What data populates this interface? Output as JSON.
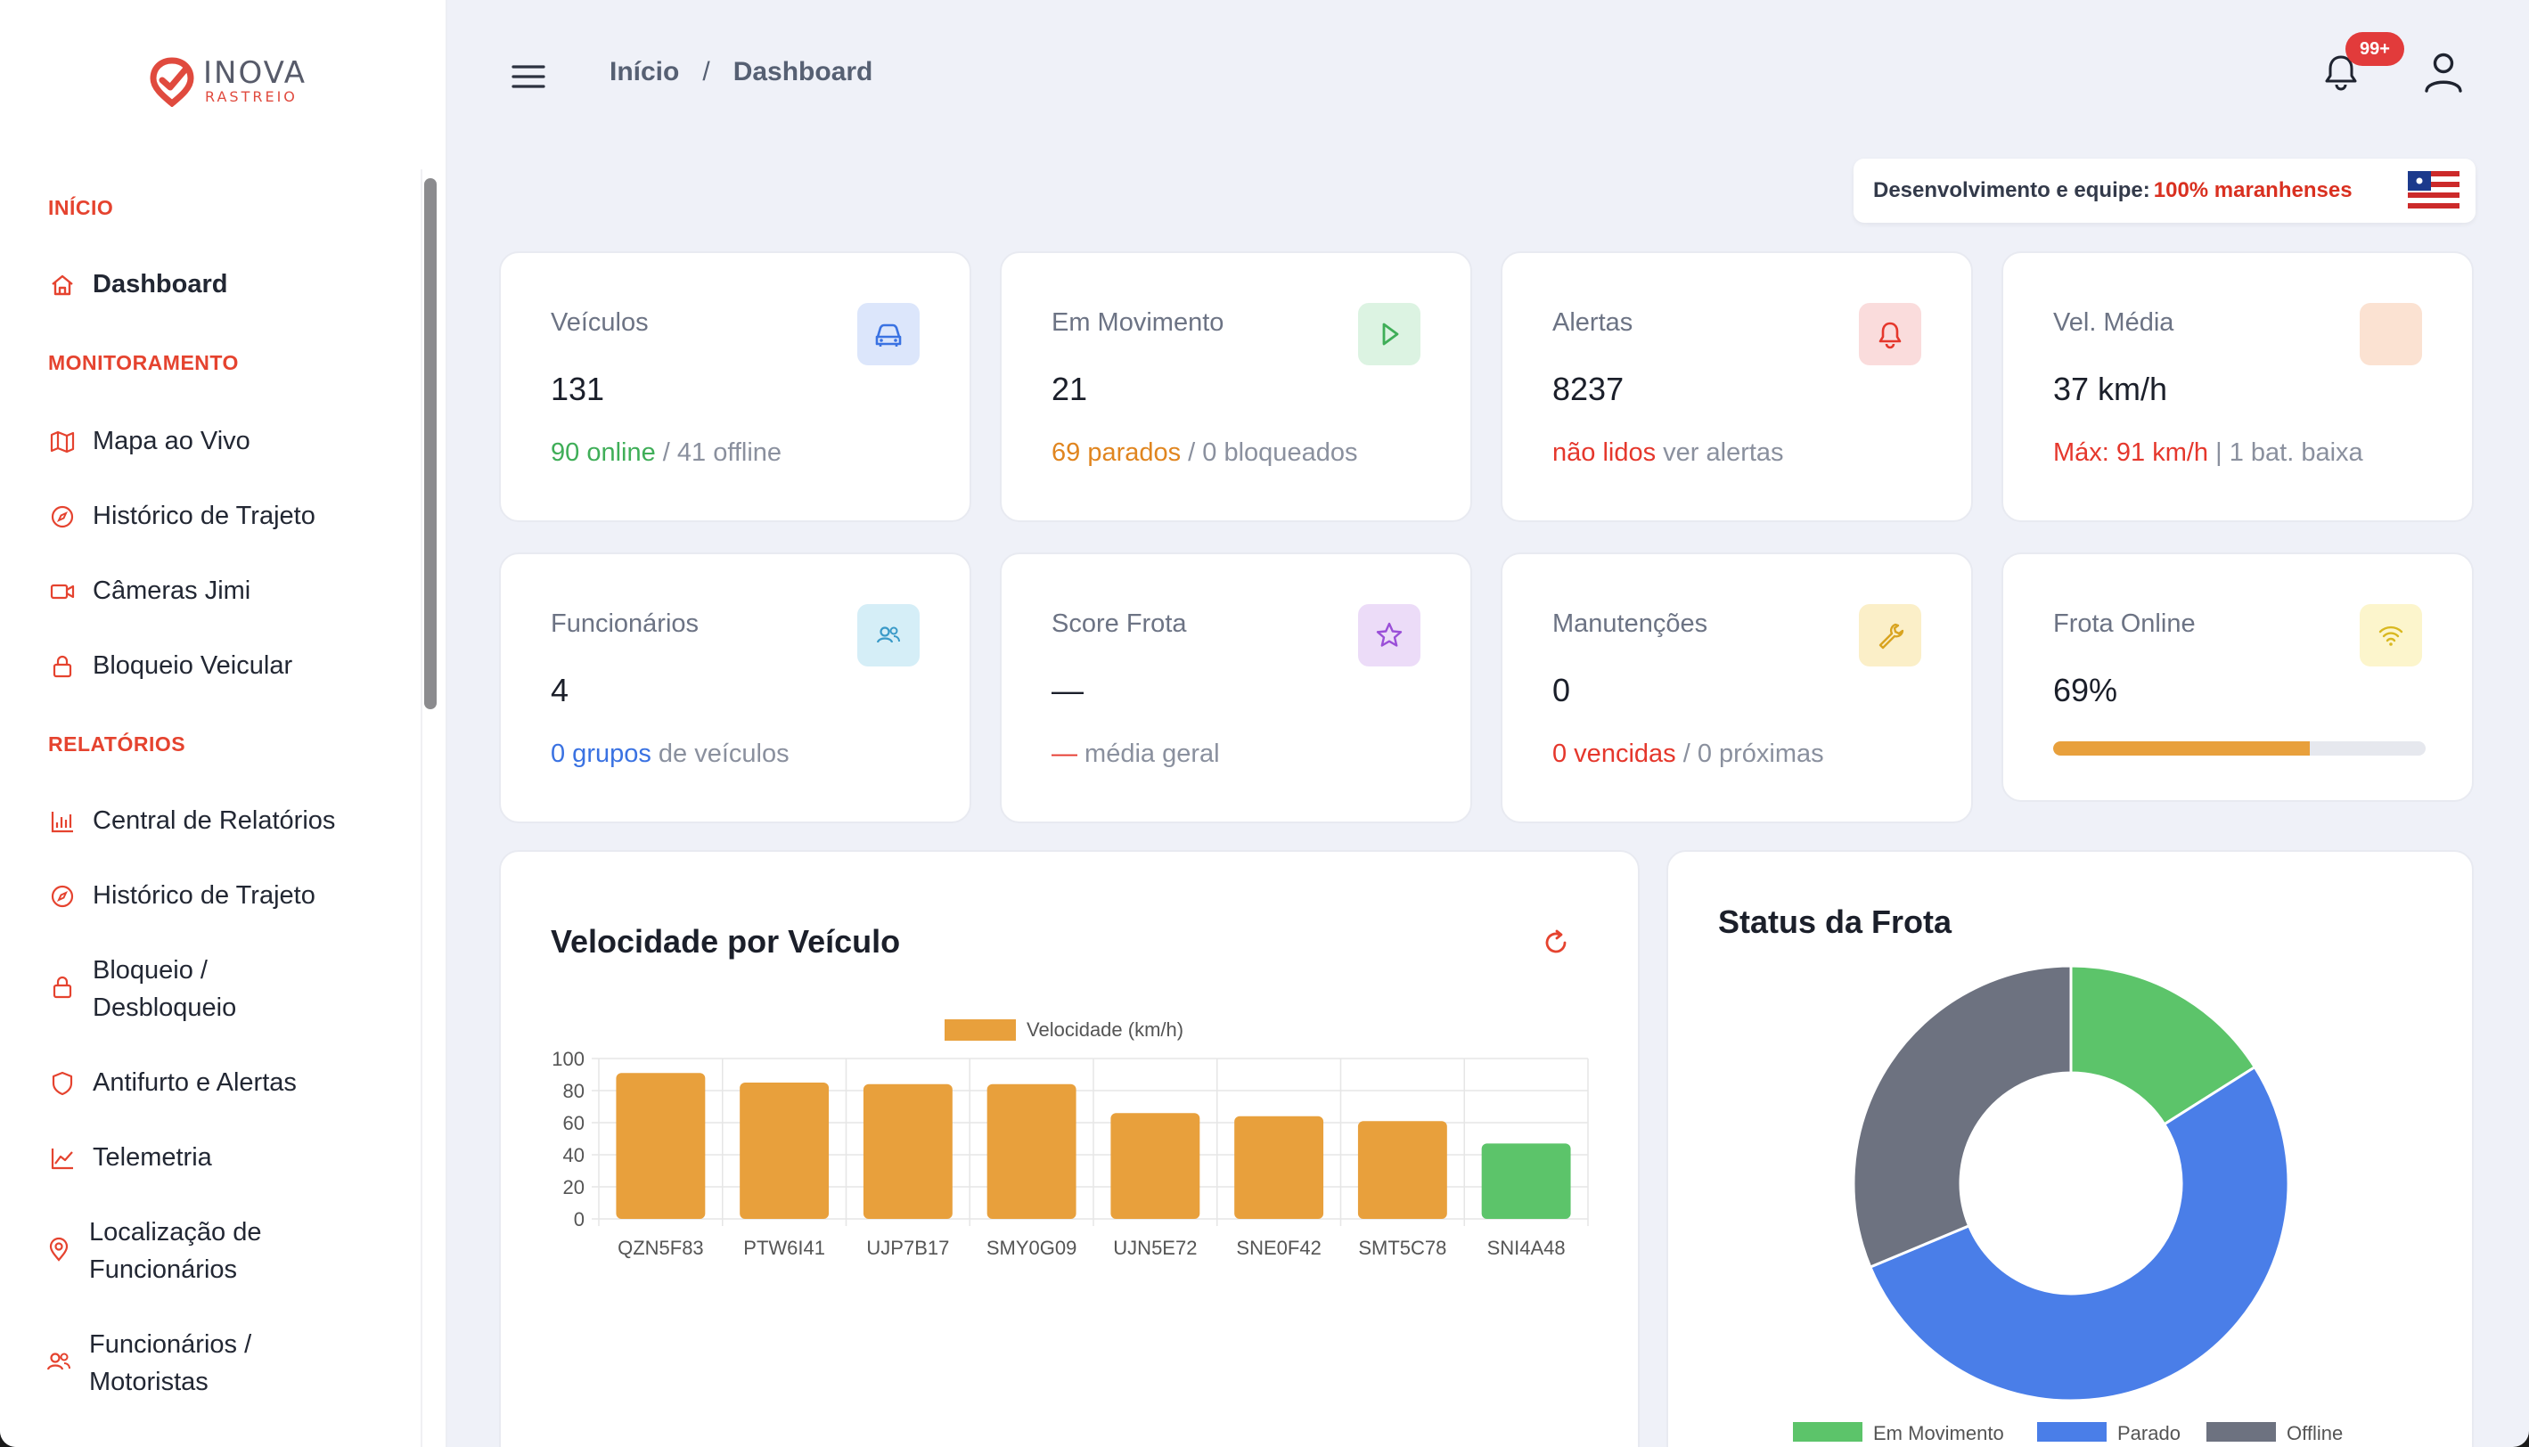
{
  "brand": {
    "name": "INOVA",
    "sub": "RASTREIO"
  },
  "sidebar": {
    "sections": [
      {
        "title": "INÍCIO"
      },
      {
        "title": "MONITORAMENTO"
      },
      {
        "title": "RELATÓRIOS"
      }
    ],
    "items": [
      {
        "label": "Dashboard",
        "icon": "home-icon"
      },
      {
        "label": "Mapa ao Vivo",
        "icon": "map-icon"
      },
      {
        "label": "Histórico de Trajeto",
        "icon": "compass-icon"
      },
      {
        "label": "Câmeras Jimi",
        "icon": "video-icon"
      },
      {
        "label": "Bloqueio Veicular",
        "icon": "lock-icon"
      },
      {
        "label": "Central de Relatórios",
        "icon": "bar-chart-icon"
      },
      {
        "label": "Histórico de Trajeto",
        "icon": "compass-icon"
      },
      {
        "label": "Bloqueio / Desbloqueio",
        "icon": "lock-icon"
      },
      {
        "label": "Antifurto e Alertas",
        "icon": "shield-icon"
      },
      {
        "label": "Telemetria",
        "icon": "trend-icon"
      },
      {
        "label": "Localização de Funcionários",
        "icon": "pin-icon"
      },
      {
        "label": "Funcionários / Motoristas",
        "icon": "users-icon"
      }
    ]
  },
  "header": {
    "breadcrumb": [
      "Início",
      "/",
      "Dashboard"
    ],
    "notification_badge": "99+",
    "team_label": "Desenvolvimento e equipe:",
    "team_highlight": "100% maranhenses"
  },
  "stats": [
    {
      "title": "Veículos",
      "value": "131",
      "sub_highlight": "90 online",
      "sub_rest": " / 41 offline",
      "icon": "car-icon",
      "icon_bg": "#dce6fb",
      "icon_color": "#3a72e2"
    },
    {
      "title": "Em Movimento",
      "value": "21",
      "sub_highlight": "69 parados",
      "sub_rest": " / 0 bloqueados",
      "icon": "play-icon",
      "icon_bg": "#dcf3e2",
      "icon_color": "#3fae58"
    },
    {
      "title": "Alertas",
      "value": "8237",
      "sub_highlight": "não lidos",
      "sub_rest": " ver alertas",
      "icon": "bell-icon",
      "icon_bg": "#fadcdc",
      "icon_color": "#e5372c"
    },
    {
      "title": "Vel. Média",
      "value": "37 km/h",
      "sub_highlight": "Máx: 91 km/h",
      "sub_rest": " | 1 bat. baixa",
      "icon": "gauge-icon",
      "icon_bg": "#fbe2d2",
      "icon_color": "#e0851f"
    },
    {
      "title": "Funcionários",
      "value": "4",
      "sub_highlight": "0 grupos",
      "sub_rest": " de veículos",
      "icon": "users-icon",
      "icon_bg": "#d5eef7",
      "icon_color": "#3a9ac8"
    },
    {
      "title": "Score Frota",
      "value": "—",
      "sub_highlight": "—",
      "sub_rest": " média geral",
      "icon": "star-icon",
      "icon_bg": "#ecdcf8",
      "icon_color": "#9a4fd8"
    },
    {
      "title": "Manutenções",
      "value": "0",
      "sub_highlight": "0 vencidas",
      "sub_rest": " / 0 próximas",
      "icon": "wrench-icon",
      "icon_bg": "#fbefc8",
      "icon_color": "#d9a420"
    },
    {
      "title": "Frota Online",
      "value": "69%",
      "progress": 0.69,
      "icon": "wifi-icon",
      "icon_bg": "#fcf5cc",
      "icon_color": "#d9b820"
    }
  ],
  "speed_chart": {
    "title": "Velocidade por Veículo",
    "refresh_icon": "refresh-icon"
  },
  "status_chart": {
    "title": "Status da Frota"
  },
  "chart_data": [
    {
      "type": "bar",
      "title": "Velocidade por Veículo",
      "categories": [
        "QZN5F83",
        "PTW6I41",
        "UJP7B17",
        "SMY0G09",
        "UJN5E72",
        "SNE0F42",
        "SMT5C78",
        "SNI4A48"
      ],
      "series": [
        {
          "name": "Velocidade (km/h)",
          "values": [
            91,
            85,
            84,
            84,
            66,
            64,
            61,
            47
          ]
        }
      ],
      "bar_colors": [
        "#e8a03c",
        "#e8a03c",
        "#e8a03c",
        "#e8a03c",
        "#e8a03c",
        "#e8a03c",
        "#e8a03c",
        "#5cc46a"
      ],
      "ylim": [
        0,
        100
      ],
      "yticks": [
        0,
        20,
        40,
        60,
        80,
        100
      ],
      "legend": "top-center",
      "grid": true
    },
    {
      "type": "pie",
      "title": "Status da Frota",
      "labels": [
        "Em Movimento",
        "Parado",
        "Offline"
      ],
      "values": [
        21,
        69,
        41
      ],
      "colors": [
        "#5cc46a",
        "#4a7ee8",
        "#6d7280"
      ],
      "legend": "bottom",
      "donut": true
    }
  ]
}
